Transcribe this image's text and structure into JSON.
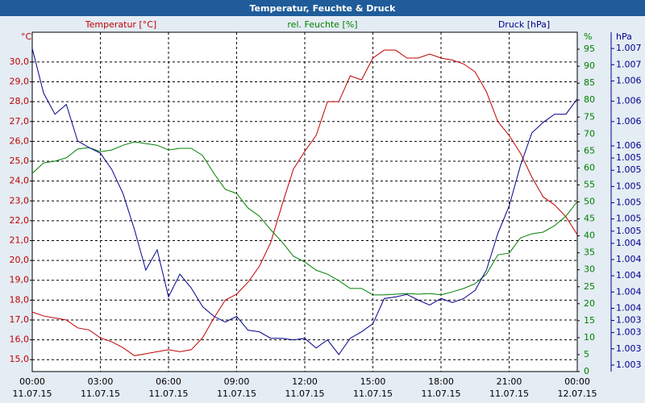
{
  "chart_data": {
    "type": "line",
    "title": "Temperatur, Feuchte & Druck",
    "y_label": "°C",
    "y2_label": "%",
    "y3_label": "hPa",
    "x": [
      0,
      0.5,
      1,
      1.5,
      2,
      2.5,
      3,
      3.5,
      4,
      4.5,
      5,
      5.5,
      6,
      6.5,
      7,
      7.5,
      8,
      8.5,
      9,
      9.5,
      10,
      10.5,
      11,
      11.5,
      12,
      12.5,
      13,
      13.5,
      14,
      14.5,
      15,
      15.5,
      16,
      16.5,
      17,
      17.5,
      18,
      18.5,
      19,
      19.5,
      20,
      20.5,
      21,
      21.5,
      22,
      22.5,
      23,
      23.5,
      24
    ],
    "xlim": [
      0,
      24
    ],
    "xticks": [
      {
        "value": 0,
        "label": "00:00\n11.07.15"
      },
      {
        "value": 3,
        "label": "03:00\n11.07.15"
      },
      {
        "value": 6,
        "label": "06:00\n11.07.15"
      },
      {
        "value": 9,
        "label": "09:00\n11.07.15"
      },
      {
        "value": 12,
        "label": "12:00\n11.07.15"
      },
      {
        "value": 15,
        "label": "15:00\n11.07.15"
      },
      {
        "value": 18,
        "label": "18:00\n11.07.15"
      },
      {
        "value": 21,
        "label": "21:00\n11.07.15"
      },
      {
        "value": 24,
        "label": "00:00\n12.07.15"
      }
    ],
    "ylim": [
      14.4,
      31.5
    ],
    "yticks": [
      {
        "value": 15,
        "label": "15,0"
      },
      {
        "value": 16,
        "label": "16,0"
      },
      {
        "value": 17,
        "label": "17,0"
      },
      {
        "value": 18,
        "label": "18,0"
      },
      {
        "value": 19,
        "label": "19,0"
      },
      {
        "value": 20,
        "label": "20,0"
      },
      {
        "value": 21,
        "label": "21,0"
      },
      {
        "value": 22,
        "label": "22,0"
      },
      {
        "value": 23,
        "label": "23,0"
      },
      {
        "value": 24,
        "label": "24,0"
      },
      {
        "value": 25,
        "label": "25,0"
      },
      {
        "value": 26,
        "label": "26,0"
      },
      {
        "value": 27,
        "label": "27,0"
      },
      {
        "value": 28,
        "label": "28,0"
      },
      {
        "value": 29,
        "label": "29,0"
      },
      {
        "value": 30,
        "label": "30,0"
      }
    ],
    "y2lim": [
      0,
      100
    ],
    "y2ticks": [
      0,
      5,
      10,
      15,
      20,
      25,
      30,
      35,
      40,
      45,
      50,
      55,
      60,
      65,
      70,
      75,
      80,
      85,
      90,
      95
    ],
    "y3lim": [
      1002.82,
      1007.0
    ],
    "y3ticks": [
      {
        "value": 1002.9,
        "label": "1.003"
      },
      {
        "value": 1003.1,
        "label": "1.003"
      },
      {
        "value": 1003.3,
        "label": "1.003"
      },
      {
        "value": 1003.45,
        "label": "1.003"
      },
      {
        "value": 1003.6,
        "label": "1.004"
      },
      {
        "value": 1003.8,
        "label": "1.004"
      },
      {
        "value": 1004.0,
        "label": "1.004"
      },
      {
        "value": 1004.2,
        "label": "1.004"
      },
      {
        "value": 1004.4,
        "label": "1.004"
      },
      {
        "value": 1004.55,
        "label": "1.005"
      },
      {
        "value": 1004.7,
        "label": "1.005"
      },
      {
        "value": 1004.9,
        "label": "1.005"
      },
      {
        "value": 1005.1,
        "label": "1.005"
      },
      {
        "value": 1005.3,
        "label": "1.005"
      },
      {
        "value": 1005.45,
        "label": "1.005"
      },
      {
        "value": 1005.6,
        "label": "1.006"
      },
      {
        "value": 1005.9,
        "label": "1.006"
      },
      {
        "value": 1006.15,
        "label": "1.006"
      },
      {
        "value": 1006.4,
        "label": "1.006"
      },
      {
        "value": 1006.6,
        "label": "1.007"
      },
      {
        "value": 1006.8,
        "label": "1.007"
      }
    ],
    "grid": true,
    "series": [
      {
        "name": "Temperatur [°C]",
        "color": "#c00000",
        "axis": "y",
        "values": [
          17.4,
          17.2,
          17.1,
          17.0,
          16.6,
          16.5,
          16.1,
          15.9,
          15.6,
          15.2,
          15.3,
          15.4,
          15.5,
          15.4,
          15.5,
          16.1,
          17.1,
          18.0,
          18.3,
          18.9,
          19.7,
          20.9,
          22.8,
          24.6,
          25.5,
          26.3,
          28.0,
          28.0,
          29.3,
          29.1,
          30.2,
          30.6,
          30.6,
          30.2,
          30.2,
          30.4,
          30.2,
          30.1,
          29.9,
          29.5,
          28.5,
          27.0,
          26.3,
          25.4,
          24.2,
          23.2,
          22.8,
          22.2,
          21.3
        ]
      },
      {
        "name": "rel. Feuchte [%]",
        "color": "#008000",
        "axis": "y2",
        "values": [
          58.4,
          61.5,
          62,
          63,
          65.6,
          66,
          64.8,
          65.3,
          66.7,
          67.7,
          67.2,
          66.7,
          65.3,
          65.8,
          65.8,
          63.7,
          58.4,
          53.7,
          52.5,
          48.2,
          45.8,
          41.8,
          38.2,
          34,
          32.3,
          29.9,
          28.7,
          26.8,
          24.5,
          24.5,
          22.6,
          22.6,
          22.8,
          23,
          22.8,
          23,
          22.6,
          23.5,
          24.5,
          25.9,
          28.7,
          34.4,
          34.9,
          39.4,
          40.6,
          41.1,
          43,
          45.8,
          50.1
        ]
      },
      {
        "name": "Druck [hPa]",
        "color": "#00008b",
        "axis": "y3",
        "values": [
          1006.8,
          1006.25,
          1005.99,
          1006.11,
          1005.66,
          1005.58,
          1005.51,
          1005.31,
          1005.01,
          1004.57,
          1004.07,
          1004.32,
          1003.74,
          1004.02,
          1003.85,
          1003.62,
          1003.5,
          1003.43,
          1003.5,
          1003.33,
          1003.31,
          1003.23,
          1003.23,
          1003.21,
          1003.23,
          1003.11,
          1003.21,
          1003.03,
          1003.23,
          1003.31,
          1003.41,
          1003.72,
          1003.74,
          1003.77,
          1003.7,
          1003.64,
          1003.72,
          1003.67,
          1003.72,
          1003.82,
          1004.07,
          1004.52,
          1004.86,
          1005.36,
          1005.76,
          1005.89,
          1005.99,
          1005.99,
          1006.18
        ]
      }
    ]
  }
}
